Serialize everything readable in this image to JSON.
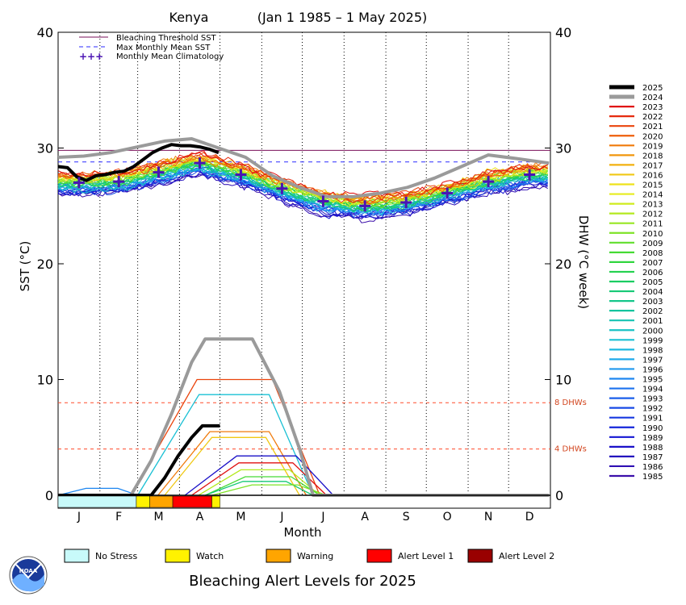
{
  "header": {
    "location": "Kenya",
    "date_range": "(Jan 1 1985 – 1 May 2025)"
  },
  "footer": {
    "title": "Bleaching Alert Levels for 2025"
  },
  "colors": {
    "threshold": "#7a0f5a",
    "mmm": "#2a2aff",
    "climatology": "#4b14b4",
    "dhw_ref": "#ff4a2a",
    "y2025": "#000000",
    "y2024": "#9a9a9a"
  },
  "chart_data": {
    "type": "line",
    "xlabel": "Month",
    "ylabel_left": "SST (°C)",
    "ylabel_right": "DHW (°C week)",
    "ylim": [
      0,
      40
    ],
    "yticks": [
      "0",
      "10",
      "20",
      "30",
      "40"
    ],
    "x_categories": [
      "J",
      "F",
      "M",
      "A",
      "M",
      "J",
      "J",
      "A",
      "S",
      "O",
      "N",
      "D"
    ],
    "legend": [
      {
        "label": "Bleaching Threshold SST",
        "style": "solid",
        "color": "#7a0f5a"
      },
      {
        "label": "Max Monthly Mean SST",
        "style": "dashed",
        "color": "#2a2aff"
      },
      {
        "label": "Monthly Mean Climatology",
        "style": "plus",
        "color": "#4b14b4"
      }
    ],
    "bleaching_threshold_sst": 29.8,
    "max_monthly_mean_sst": 28.8,
    "monthly_mean_climatology": [
      27.0,
      27.1,
      27.9,
      28.7,
      27.7,
      26.5,
      25.4,
      25.0,
      25.3,
      26.1,
      27.1,
      27.7
    ],
    "dhw_reference_lines": [
      {
        "value": 4,
        "label": "4 DHWs"
      },
      {
        "value": 8,
        "label": "8 DHWs"
      }
    ],
    "years": [
      "2025",
      "2024",
      "2023",
      "2022",
      "2021",
      "2020",
      "2019",
      "2018",
      "2017",
      "2016",
      "2015",
      "2014",
      "2013",
      "2012",
      "2011",
      "2010",
      "2009",
      "2008",
      "2007",
      "2006",
      "2005",
      "2004",
      "2003",
      "2002",
      "2001",
      "2000",
      "1999",
      "1998",
      "1997",
      "1996",
      "1995",
      "1994",
      "1993",
      "1992",
      "1991",
      "1990",
      "1989",
      "1988",
      "1987",
      "1986",
      "1985"
    ],
    "year_colors": [
      "#000000",
      "#9a9a9a",
      "#e01010",
      "#e52a0e",
      "#ea440c",
      "#ee5e0a",
      "#f07a0a",
      "#f0960c",
      "#f2b00e",
      "#f0c814",
      "#eee21a",
      "#e6ec1c",
      "#cfeb1c",
      "#b4e91e",
      "#98e622",
      "#7ee326",
      "#60de2c",
      "#46da34",
      "#30d63e",
      "#22d14e",
      "#1acd62",
      "#16c976",
      "#14c68a",
      "#14c49e",
      "#16c3b2",
      "#18c2c4",
      "#1ac0d4",
      "#1cb8e0",
      "#1eaaea",
      "#1e98ee",
      "#1e86f0",
      "#1c72ee",
      "#1a5eea",
      "#184ae6",
      "#1638e0",
      "#1426da",
      "#1416d2",
      "#1a10c8",
      "#2410be",
      "#3010b4",
      "#3c10aa"
    ],
    "sst_2025": [
      {
        "day": 1,
        "sst": 28.4
      },
      {
        "day": 8,
        "sst": 28.3
      },
      {
        "day": 15,
        "sst": 27.5
      },
      {
        "day": 22,
        "sst": 27.2
      },
      {
        "day": 29,
        "sst": 27.6
      },
      {
        "day": 36,
        "sst": 27.7
      },
      {
        "day": 43,
        "sst": 27.9
      },
      {
        "day": 50,
        "sst": 28.0
      },
      {
        "day": 57,
        "sst": 28.4
      },
      {
        "day": 64,
        "sst": 29.0
      },
      {
        "day": 71,
        "sst": 29.6
      },
      {
        "day": 78,
        "sst": 30.0
      },
      {
        "day": 85,
        "sst": 30.3
      },
      {
        "day": 92,
        "sst": 30.2
      },
      {
        "day": 99,
        "sst": 30.2
      },
      {
        "day": 106,
        "sst": 30.1
      },
      {
        "day": 113,
        "sst": 29.9
      },
      {
        "day": 120,
        "sst": 29.6
      }
    ],
    "sst_2024": [
      {
        "day": 1,
        "sst": 29.2
      },
      {
        "day": 20,
        "sst": 29.3
      },
      {
        "day": 40,
        "sst": 29.6
      },
      {
        "day": 60,
        "sst": 30.1
      },
      {
        "day": 80,
        "sst": 30.6
      },
      {
        "day": 100,
        "sst": 30.8
      },
      {
        "day": 120,
        "sst": 30.0
      },
      {
        "day": 140,
        "sst": 29.2
      },
      {
        "day": 160,
        "sst": 27.6
      },
      {
        "day": 180,
        "sst": 26.6
      },
      {
        "day": 200,
        "sst": 25.8
      },
      {
        "day": 220,
        "sst": 25.8
      },
      {
        "day": 240,
        "sst": 26.1
      },
      {
        "day": 260,
        "sst": 26.6
      },
      {
        "day": 280,
        "sst": 27.4
      },
      {
        "day": 300,
        "sst": 28.4
      },
      {
        "day": 320,
        "sst": 29.4
      },
      {
        "day": 340,
        "sst": 29.1
      },
      {
        "day": 365,
        "sst": 28.7
      }
    ],
    "dhw_2024": [
      {
        "day": 1,
        "dhw": 0
      },
      {
        "day": 55,
        "dhw": 0
      },
      {
        "day": 70,
        "dhw": 3
      },
      {
        "day": 85,
        "dhw": 7
      },
      {
        "day": 100,
        "dhw": 11.5
      },
      {
        "day": 110,
        "dhw": 13.5
      },
      {
        "day": 145,
        "dhw": 13.5
      },
      {
        "day": 165,
        "dhw": 9
      },
      {
        "day": 180,
        "dhw": 4
      },
      {
        "day": 190,
        "dhw": 0
      },
      {
        "day": 365,
        "dhw": 0
      }
    ],
    "dhw_2025": [
      {
        "day": 1,
        "dhw": 0
      },
      {
        "day": 70,
        "dhw": 0
      },
      {
        "day": 80,
        "dhw": 1.5
      },
      {
        "day": 90,
        "dhw": 3.4
      },
      {
        "day": 100,
        "dhw": 5.0
      },
      {
        "day": 108,
        "dhw": 6.0
      },
      {
        "day": 121,
        "dhw": 6.0
      }
    ],
    "alert_strip_2025": [
      {
        "start_day": 1,
        "end_day": 59,
        "level": "No Stress"
      },
      {
        "start_day": 59,
        "end_day": 69,
        "level": "Watch"
      },
      {
        "start_day": 69,
        "end_day": 86,
        "level": "Warning"
      },
      {
        "start_day": 86,
        "end_day": 115,
        "level": "Alert Level 1"
      },
      {
        "start_day": 115,
        "end_day": 121,
        "level": "Watch"
      }
    ]
  },
  "alert_key": [
    {
      "label": "No Stress",
      "color": "#c8fafa"
    },
    {
      "label": "Watch",
      "color": "#fff200"
    },
    {
      "label": "Warning",
      "color": "#ffa500"
    },
    {
      "label": "Alert Level 1",
      "color": "#ff0000"
    },
    {
      "label": "Alert Level 2",
      "color": "#990000"
    }
  ],
  "logo": {
    "text": "NOAA"
  }
}
